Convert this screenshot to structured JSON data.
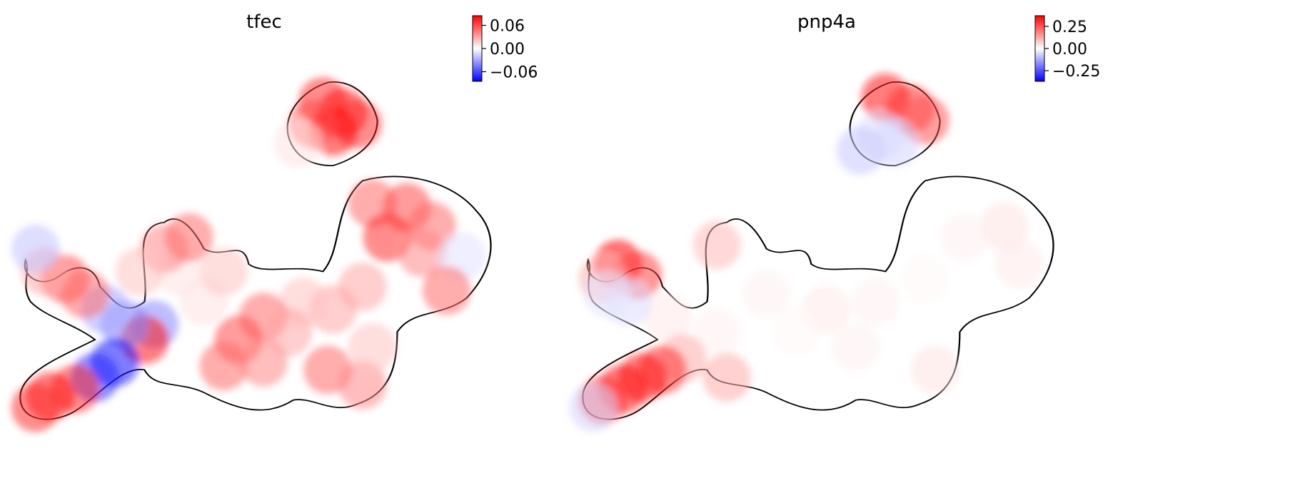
{
  "chart_data": [
    {
      "type": "scatter",
      "title": "tfec",
      "xlabel": "",
      "ylabel": "",
      "colormap": [
        "#0000ff",
        "#ffffff",
        "#ff0000"
      ],
      "colorbar": {
        "min": -0.085,
        "max": 0.085,
        "ticks": [
          0.06,
          0.0,
          -0.06
        ],
        "tick_labels": [
          "0.06",
          "0.00",
          "−0.06"
        ]
      },
      "points": [
        {
          "x": 0.62,
          "y": 0.83,
          "v": 0.07
        },
        {
          "x": 0.66,
          "y": 0.8,
          "v": 0.08
        },
        {
          "x": 0.69,
          "y": 0.77,
          "v": 0.07
        },
        {
          "x": 0.64,
          "y": 0.75,
          "v": 0.08
        },
        {
          "x": 0.6,
          "y": 0.77,
          "v": 0.06
        },
        {
          "x": 0.57,
          "y": 0.72,
          "v": 0.01
        },
        {
          "x": 0.72,
          "y": 0.56,
          "v": 0.05
        },
        {
          "x": 0.79,
          "y": 0.55,
          "v": 0.06
        },
        {
          "x": 0.84,
          "y": 0.5,
          "v": 0.05
        },
        {
          "x": 0.75,
          "y": 0.47,
          "v": 0.07
        },
        {
          "x": 0.82,
          "y": 0.43,
          "v": 0.04
        },
        {
          "x": 0.9,
          "y": 0.42,
          "v": -0.01
        },
        {
          "x": 0.87,
          "y": 0.33,
          "v": 0.05
        },
        {
          "x": 0.7,
          "y": 0.34,
          "v": 0.03
        },
        {
          "x": 0.64,
          "y": 0.28,
          "v": 0.03
        },
        {
          "x": 0.58,
          "y": 0.3,
          "v": 0.02
        },
        {
          "x": 0.5,
          "y": 0.26,
          "v": 0.05
        },
        {
          "x": 0.45,
          "y": 0.2,
          "v": 0.06
        },
        {
          "x": 0.42,
          "y": 0.13,
          "v": 0.05
        },
        {
          "x": 0.5,
          "y": 0.14,
          "v": 0.04
        },
        {
          "x": 0.55,
          "y": 0.22,
          "v": 0.03
        },
        {
          "x": 0.63,
          "y": 0.12,
          "v": 0.05
        },
        {
          "x": 0.7,
          "y": 0.08,
          "v": 0.04
        },
        {
          "x": 0.72,
          "y": 0.18,
          "v": 0.02
        },
        {
          "x": 0.38,
          "y": 0.3,
          "v": 0.01
        },
        {
          "x": 0.42,
          "y": 0.38,
          "v": 0.02
        },
        {
          "x": 0.33,
          "y": 0.38,
          "v": 0.01
        },
        {
          "x": 0.3,
          "y": 0.44,
          "v": 0.04
        },
        {
          "x": 0.35,
          "y": 0.47,
          "v": 0.05
        },
        {
          "x": 0.28,
          "y": 0.24,
          "v": -0.04
        },
        {
          "x": 0.26,
          "y": 0.2,
          "v": 0.08
        },
        {
          "x": 0.22,
          "y": 0.24,
          "v": -0.04
        },
        {
          "x": 0.18,
          "y": 0.28,
          "v": -0.03
        },
        {
          "x": 0.2,
          "y": 0.14,
          "v": -0.08
        },
        {
          "x": 0.16,
          "y": 0.1,
          "v": -0.07
        },
        {
          "x": 0.12,
          "y": 0.07,
          "v": 0.07
        },
        {
          "x": 0.07,
          "y": 0.05,
          "v": 0.08
        },
        {
          "x": 0.04,
          "y": 0.02,
          "v": 0.07
        },
        {
          "x": 0.1,
          "y": 0.36,
          "v": 0.06
        },
        {
          "x": 0.14,
          "y": 0.32,
          "v": 0.05
        },
        {
          "x": 0.06,
          "y": 0.38,
          "v": 0.03
        },
        {
          "x": 0.04,
          "y": 0.44,
          "v": -0.02
        },
        {
          "x": 0.25,
          "y": 0.38,
          "v": 0.02
        }
      ]
    },
    {
      "type": "scatter",
      "title": "pnp4a",
      "xlabel": "",
      "ylabel": "",
      "colormap": [
        "#0000ff",
        "#ffffff",
        "#ff0000"
      ],
      "colorbar": {
        "min": -0.37,
        "max": 0.37,
        "ticks": [
          0.25,
          0.0,
          -0.25
        ],
        "tick_labels": [
          "0.25",
          "0.00",
          "−0.25"
        ]
      },
      "points": [
        {
          "x": 0.62,
          "y": 0.84,
          "v": 0.35
        },
        {
          "x": 0.67,
          "y": 0.81,
          "v": 0.3
        },
        {
          "x": 0.7,
          "y": 0.78,
          "v": 0.25
        },
        {
          "x": 0.61,
          "y": 0.74,
          "v": -0.05
        },
        {
          "x": 0.57,
          "y": 0.7,
          "v": -0.08
        },
        {
          "x": 0.64,
          "y": 0.72,
          "v": -0.06
        },
        {
          "x": 0.86,
          "y": 0.5,
          "v": 0.04
        },
        {
          "x": 0.78,
          "y": 0.47,
          "v": 0.02
        },
        {
          "x": 0.89,
          "y": 0.4,
          "v": 0.03
        },
        {
          "x": 0.7,
          "y": 0.36,
          "v": 0.01
        },
        {
          "x": 0.6,
          "y": 0.3,
          "v": 0.02
        },
        {
          "x": 0.5,
          "y": 0.28,
          "v": 0.03
        },
        {
          "x": 0.44,
          "y": 0.22,
          "v": 0.01
        },
        {
          "x": 0.56,
          "y": 0.18,
          "v": 0.02
        },
        {
          "x": 0.72,
          "y": 0.12,
          "v": 0.04
        },
        {
          "x": 0.38,
          "y": 0.32,
          "v": 0.02
        },
        {
          "x": 0.28,
          "y": 0.45,
          "v": 0.1
        },
        {
          "x": 0.28,
          "y": 0.22,
          "v": 0.02
        },
        {
          "x": 0.18,
          "y": 0.26,
          "v": 0.03
        },
        {
          "x": 0.21,
          "y": 0.15,
          "v": 0.12
        },
        {
          "x": 0.17,
          "y": 0.12,
          "v": 0.3
        },
        {
          "x": 0.13,
          "y": 0.1,
          "v": 0.34
        },
        {
          "x": 0.09,
          "y": 0.07,
          "v": 0.35
        },
        {
          "x": 0.05,
          "y": 0.04,
          "v": 0.3
        },
        {
          "x": 0.03,
          "y": 0.02,
          "v": -0.06
        },
        {
          "x": 0.08,
          "y": 0.4,
          "v": 0.36
        },
        {
          "x": 0.12,
          "y": 0.37,
          "v": 0.28
        },
        {
          "x": 0.05,
          "y": 0.36,
          "v": 0.12
        },
        {
          "x": 0.1,
          "y": 0.3,
          "v": -0.05
        },
        {
          "x": 0.06,
          "y": 0.32,
          "v": -0.04
        },
        {
          "x": 0.3,
          "y": 0.1,
          "v": 0.12
        }
      ]
    }
  ]
}
